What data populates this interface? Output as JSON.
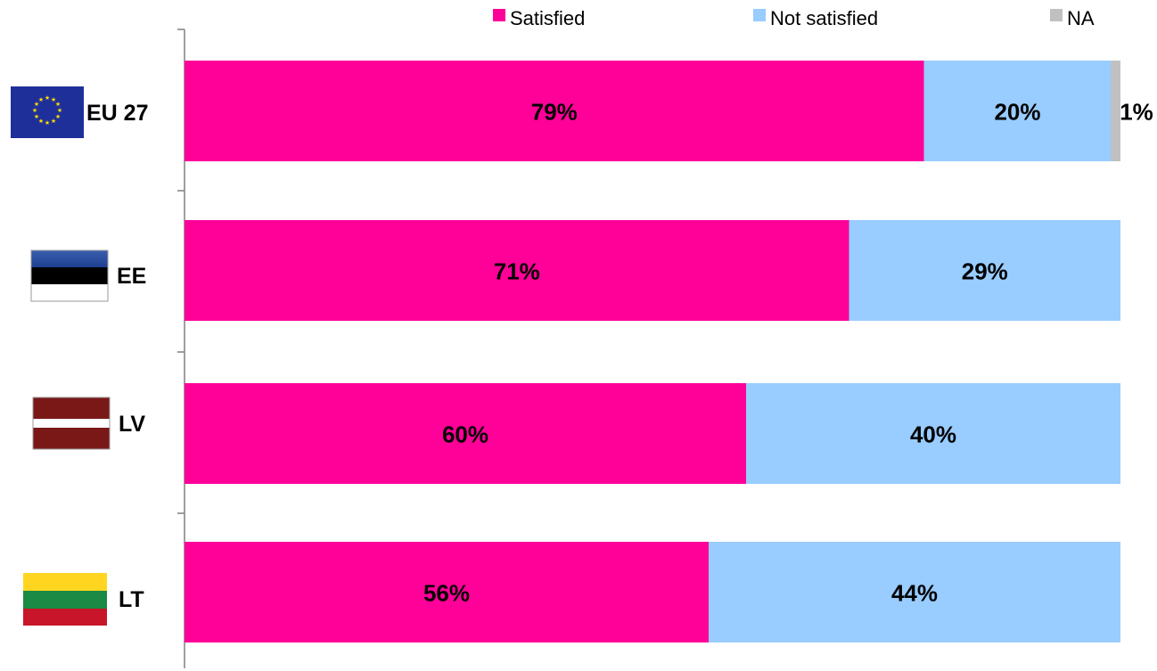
{
  "chart_data": {
    "type": "bar",
    "orientation": "horizontal",
    "stacked": true,
    "categories": [
      "EU 27",
      "EE",
      "LV",
      "LT"
    ],
    "category_flags": [
      "eu-flag-icon",
      "estonia-flag-icon",
      "latvia-flag-icon",
      "lithuania-flag-icon"
    ],
    "series": [
      {
        "name": "Satisfied",
        "color": "#ff0099",
        "values": [
          79,
          71,
          60,
          56
        ],
        "labels": [
          "79%",
          "71%",
          "60%",
          "56%"
        ]
      },
      {
        "name": "Not satisfied",
        "color": "#99ccff",
        "values": [
          20,
          29,
          40,
          44
        ],
        "labels": [
          "20%",
          "29%",
          "40%",
          "44%"
        ]
      },
      {
        "name": "NA",
        "color": "#c0c0c0",
        "values": [
          1,
          0,
          0,
          0
        ],
        "labels": [
          "1%",
          "",
          "",
          ""
        ]
      }
    ],
    "xlim": [
      0,
      100
    ],
    "legend_position": "top",
    "grid": false,
    "title": "",
    "xlabel": "",
    "ylabel": ""
  }
}
